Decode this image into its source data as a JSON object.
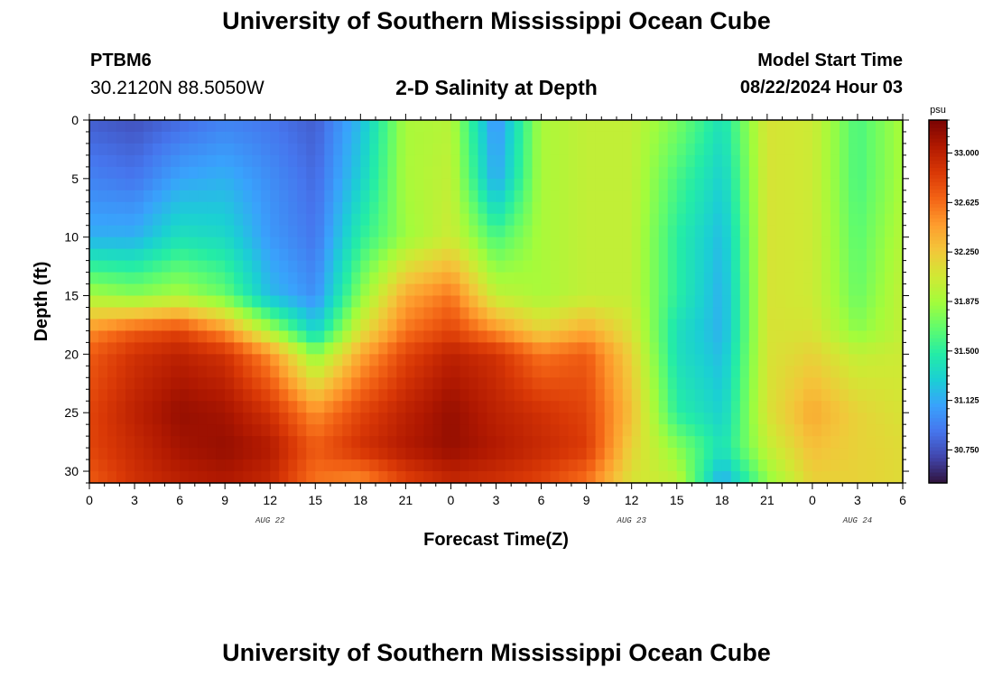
{
  "header": {
    "title": "University of Southern Mississippi Ocean Cube",
    "station_id": "PTBM6",
    "coordinates": "30.2120N  88.5050W",
    "subtitle": "2-D Salinity at Depth",
    "model_start_label": "Model Start Time",
    "model_start_value": "08/22/2024 Hour 03"
  },
  "footer": {
    "title": "University of Southern Mississippi Ocean Cube"
  },
  "chart_data": {
    "type": "heatmap",
    "title": "2-D Salinity at Depth",
    "xlabel": "Forecast Time(Z)",
    "ylabel": "Depth (ft)",
    "units": "psu",
    "x_range_hours": [
      0,
      54
    ],
    "y_range_ft": [
      0,
      31
    ],
    "y_inverted": true,
    "x_ticks": [
      {
        "hour": 0,
        "label": "0"
      },
      {
        "hour": 3,
        "label": "3"
      },
      {
        "hour": 6,
        "label": "6"
      },
      {
        "hour": 9,
        "label": "9"
      },
      {
        "hour": 12,
        "label": "12"
      },
      {
        "hour": 15,
        "label": "15"
      },
      {
        "hour": 18,
        "label": "18"
      },
      {
        "hour": 21,
        "label": "21"
      },
      {
        "hour": 24,
        "label": "0"
      },
      {
        "hour": 27,
        "label": "3"
      },
      {
        "hour": 30,
        "label": "6"
      },
      {
        "hour": 33,
        "label": "9"
      },
      {
        "hour": 36,
        "label": "12"
      },
      {
        "hour": 39,
        "label": "15"
      },
      {
        "hour": 42,
        "label": "18"
      },
      {
        "hour": 45,
        "label": "21"
      },
      {
        "hour": 48,
        "label": "0"
      },
      {
        "hour": 51,
        "label": "3"
      },
      {
        "hour": 54,
        "label": "6"
      }
    ],
    "date_labels": [
      {
        "hour": 12,
        "label": "AUG 22"
      },
      {
        "hour": 36,
        "label": "AUG 23"
      },
      {
        "hour": 51,
        "label": "AUG 24"
      }
    ],
    "y_ticks": [
      {
        "depth": 0,
        "label": "0"
      },
      {
        "depth": 5,
        "label": "5"
      },
      {
        "depth": 10,
        "label": "10"
      },
      {
        "depth": 15,
        "label": "15"
      },
      {
        "depth": 20,
        "label": "20"
      },
      {
        "depth": 25,
        "label": "25"
      },
      {
        "depth": 30,
        "label": "30"
      }
    ],
    "colorbar": {
      "min": 30.5,
      "max": 33.25,
      "ticks": [
        {
          "value": 30.75,
          "label": "30.750"
        },
        {
          "value": 31.125,
          "label": "31.125"
        },
        {
          "value": 31.5,
          "label": "31.500"
        },
        {
          "value": 31.875,
          "label": "31.875"
        },
        {
          "value": 32.25,
          "label": "32.250"
        },
        {
          "value": 32.625,
          "label": "32.625"
        },
        {
          "value": 33.0,
          "label": "33.000"
        }
      ],
      "palette": [
        "#30123b",
        "#4145ab",
        "#4675ed",
        "#39a2fc",
        "#1bcfd4",
        "#24eca6",
        "#61fc6c",
        "#a4fc3b",
        "#d1e834",
        "#f3c63a",
        "#fe9b2d",
        "#f36315",
        "#d93806",
        "#b11901",
        "#7a0402"
      ]
    },
    "grid_time_hours": [
      0,
      3,
      6,
      9,
      12,
      15,
      18,
      21,
      24,
      27,
      30,
      33,
      36,
      39,
      42,
      45,
      48,
      51,
      54
    ],
    "grid_depth_ft": [
      0,
      5,
      10,
      15,
      18,
      20,
      25,
      28,
      31
    ],
    "salinity_grid": [
      [
        30.8,
        30.75,
        30.85,
        30.95,
        30.9,
        30.8,
        31.2,
        31.9,
        31.95,
        31.0,
        31.9,
        32.0,
        32.0,
        31.75,
        31.4,
        32.1,
        32.05,
        31.6,
        31.9
      ],
      [
        30.95,
        30.9,
        31.1,
        31.15,
        31.0,
        30.85,
        31.3,
        31.9,
        32.0,
        31.1,
        31.9,
        32.0,
        32.0,
        31.6,
        31.3,
        32.1,
        32.05,
        31.6,
        31.9
      ],
      [
        31.15,
        31.15,
        31.4,
        31.35,
        31.05,
        30.9,
        31.5,
        31.85,
        32.05,
        31.6,
        31.9,
        32.0,
        32.0,
        31.5,
        31.2,
        32.1,
        32.05,
        31.65,
        31.95
      ],
      [
        31.9,
        31.8,
        31.9,
        31.7,
        31.2,
        31.0,
        31.8,
        32.4,
        32.6,
        32.0,
        31.9,
        32.0,
        32.0,
        31.5,
        31.15,
        32.1,
        32.05,
        31.7,
        32.0
      ],
      [
        32.5,
        32.7,
        32.8,
        32.5,
        31.9,
        31.3,
        32.1,
        32.6,
        32.8,
        32.5,
        32.2,
        32.4,
        32.1,
        31.4,
        31.15,
        32.1,
        32.1,
        31.8,
        32.0
      ],
      [
        32.7,
        32.9,
        33.0,
        32.9,
        32.5,
        31.8,
        32.4,
        32.8,
        33.0,
        32.9,
        32.6,
        32.7,
        32.2,
        31.4,
        31.2,
        32.1,
        32.2,
        32.0,
        32.05
      ],
      [
        32.8,
        33.0,
        33.15,
        33.1,
        32.9,
        32.5,
        32.8,
        33.0,
        33.15,
        33.0,
        32.9,
        32.8,
        32.3,
        31.5,
        31.3,
        32.1,
        32.4,
        32.2,
        32.1
      ],
      [
        32.8,
        32.95,
        33.1,
        33.15,
        33.05,
        32.7,
        32.9,
        33.05,
        33.15,
        33.05,
        32.95,
        32.85,
        32.2,
        31.8,
        31.4,
        32.0,
        32.3,
        32.2,
        32.15
      ],
      [
        32.7,
        32.9,
        33.0,
        33.05,
        32.95,
        32.6,
        32.5,
        32.8,
        32.95,
        32.9,
        32.8,
        32.6,
        32.1,
        32.0,
        31.1,
        31.8,
        32.2,
        32.2,
        32.15
      ]
    ]
  }
}
